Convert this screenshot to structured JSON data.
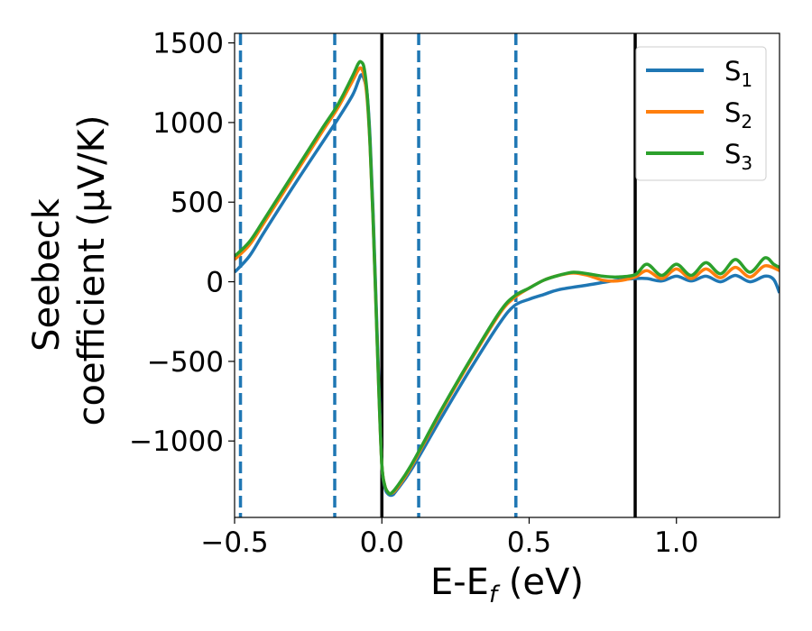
{
  "chart_data": {
    "type": "line",
    "xlabel": "E-E",
    "xlabel_sub": "f",
    "xlabel_unit": " (eV)",
    "ylabel_line1": "Seebeck",
    "ylabel_line2": "coefficient  (μV/K)",
    "xlim": [
      -0.5,
      1.35
    ],
    "ylim": [
      -1480,
      1560
    ],
    "xticks": [
      {
        "value": -0.5,
        "label": "−0.5"
      },
      {
        "value": 0.0,
        "label": "0.0"
      },
      {
        "value": 0.5,
        "label": "0.5"
      },
      {
        "value": 1.0,
        "label": "1.0"
      }
    ],
    "yticks": [
      {
        "value": 1500,
        "label": "1500"
      },
      {
        "value": 1000,
        "label": "1000"
      },
      {
        "value": 500,
        "label": "500"
      },
      {
        "value": 0,
        "label": "0"
      },
      {
        "value": -500,
        "label": "−500"
      },
      {
        "value": -1000,
        "label": "−1000"
      }
    ],
    "vlines_dashed": [
      -0.48,
      -0.16,
      0.125,
      0.455
    ],
    "vlines_solid": [
      0.0,
      0.86
    ],
    "legend_position": "top-right",
    "series": [
      {
        "name": "S",
        "name_sub": "1",
        "color": "#1f77b4",
        "points": [
          [
            -0.5,
            60
          ],
          [
            -0.45,
            160
          ],
          [
            -0.4,
            310
          ],
          [
            -0.3,
            600
          ],
          [
            -0.2,
            880
          ],
          [
            -0.15,
            1020
          ],
          [
            -0.1,
            1170
          ],
          [
            -0.08,
            1260
          ],
          [
            -0.07,
            1300
          ],
          [
            -0.06,
            1270
          ],
          [
            -0.05,
            1180
          ],
          [
            -0.04,
            900
          ],
          [
            -0.03,
            450
          ],
          [
            -0.02,
            -100
          ],
          [
            -0.01,
            -650
          ],
          [
            0.0,
            -1150
          ],
          [
            0.01,
            -1290
          ],
          [
            0.02,
            -1330
          ],
          [
            0.035,
            -1340
          ],
          [
            0.05,
            -1310
          ],
          [
            0.1,
            -1180
          ],
          [
            0.2,
            -860
          ],
          [
            0.3,
            -550
          ],
          [
            0.4,
            -260
          ],
          [
            0.45,
            -150
          ],
          [
            0.5,
            -110
          ],
          [
            0.55,
            -80
          ],
          [
            0.6,
            -50
          ],
          [
            0.7,
            -20
          ],
          [
            0.8,
            10
          ],
          [
            0.86,
            20
          ],
          [
            0.9,
            20
          ],
          [
            0.95,
            5
          ],
          [
            1.0,
            35
          ],
          [
            1.05,
            5
          ],
          [
            1.1,
            35
          ],
          [
            1.15,
            0
          ],
          [
            1.2,
            40
          ],
          [
            1.25,
            0
          ],
          [
            1.3,
            35
          ],
          [
            1.33,
            15
          ],
          [
            1.35,
            -70
          ]
        ]
      },
      {
        "name": "S",
        "name_sub": "2",
        "color": "#ff7f0e",
        "points": [
          [
            -0.5,
            140
          ],
          [
            -0.45,
            230
          ],
          [
            -0.4,
            370
          ],
          [
            -0.3,
            660
          ],
          [
            -0.2,
            950
          ],
          [
            -0.15,
            1090
          ],
          [
            -0.1,
            1260
          ],
          [
            -0.08,
            1330
          ],
          [
            -0.07,
            1340
          ],
          [
            -0.06,
            1290
          ],
          [
            -0.05,
            1150
          ],
          [
            -0.04,
            850
          ],
          [
            -0.03,
            400
          ],
          [
            -0.02,
            -150
          ],
          [
            -0.01,
            -700
          ],
          [
            0.0,
            -1150
          ],
          [
            0.01,
            -1280
          ],
          [
            0.02,
            -1320
          ],
          [
            0.03,
            -1330
          ],
          [
            0.05,
            -1300
          ],
          [
            0.1,
            -1160
          ],
          [
            0.2,
            -820
          ],
          [
            0.3,
            -500
          ],
          [
            0.4,
            -200
          ],
          [
            0.45,
            -100
          ],
          [
            0.5,
            -40
          ],
          [
            0.55,
            10
          ],
          [
            0.6,
            40
          ],
          [
            0.65,
            55
          ],
          [
            0.7,
            40
          ],
          [
            0.75,
            10
          ],
          [
            0.8,
            5
          ],
          [
            0.86,
            30
          ],
          [
            0.9,
            70
          ],
          [
            0.95,
            20
          ],
          [
            1.0,
            80
          ],
          [
            1.05,
            20
          ],
          [
            1.1,
            80
          ],
          [
            1.15,
            25
          ],
          [
            1.2,
            90
          ],
          [
            1.25,
            30
          ],
          [
            1.3,
            100
          ],
          [
            1.35,
            70
          ]
        ]
      },
      {
        "name": "S",
        "name_sub": "3",
        "color": "#2ca02c",
        "points": [
          [
            -0.5,
            160
          ],
          [
            -0.45,
            250
          ],
          [
            -0.4,
            390
          ],
          [
            -0.3,
            680
          ],
          [
            -0.2,
            970
          ],
          [
            -0.15,
            1110
          ],
          [
            -0.1,
            1290
          ],
          [
            -0.08,
            1370
          ],
          [
            -0.07,
            1380
          ],
          [
            -0.06,
            1340
          ],
          [
            -0.05,
            1180
          ],
          [
            -0.04,
            860
          ],
          [
            -0.03,
            400
          ],
          [
            -0.02,
            -150
          ],
          [
            -0.01,
            -700
          ],
          [
            0.0,
            -1150
          ],
          [
            0.01,
            -1280
          ],
          [
            0.02,
            -1320
          ],
          [
            0.03,
            -1330
          ],
          [
            0.05,
            -1290
          ],
          [
            0.1,
            -1150
          ],
          [
            0.2,
            -810
          ],
          [
            0.3,
            -490
          ],
          [
            0.4,
            -190
          ],
          [
            0.45,
            -90
          ],
          [
            0.5,
            -40
          ],
          [
            0.55,
            10
          ],
          [
            0.6,
            40
          ],
          [
            0.65,
            60
          ],
          [
            0.7,
            50
          ],
          [
            0.75,
            35
          ],
          [
            0.8,
            30
          ],
          [
            0.86,
            45
          ],
          [
            0.9,
            110
          ],
          [
            0.95,
            40
          ],
          [
            1.0,
            110
          ],
          [
            1.05,
            40
          ],
          [
            1.1,
            120
          ],
          [
            1.15,
            50
          ],
          [
            1.2,
            140
          ],
          [
            1.25,
            60
          ],
          [
            1.3,
            150
          ],
          [
            1.33,
            110
          ],
          [
            1.35,
            90
          ]
        ]
      }
    ]
  }
}
